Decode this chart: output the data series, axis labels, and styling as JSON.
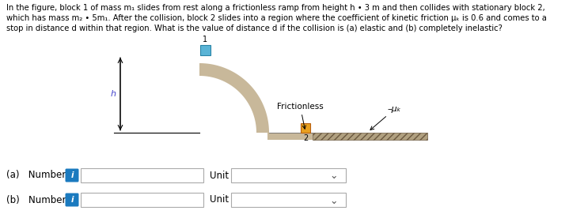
{
  "text_line1": "In the figure, block 1 of mass m₁ slides from rest along a frictionless ramp from height h • 3 m and then collides with stationary block 2,",
  "text_line2": "which has mass m₂ • 5m₁. After the collision, block 2 slides into a region where the coefficient of kinetic friction μₖ is 0.6 and comes to a",
  "text_line3": "stop in distance d within that region. What is the value of distance d if the collision is (a) elastic and (b) completely inelastic?",
  "label_a": "(a)   Number",
  "label_b": "(b)   Number",
  "label_unit": "Unit",
  "label_frictionless": "Frictionless",
  "label_mu": "–μₖ",
  "label_h": "h",
  "label_1": "1",
  "label_2": "2",
  "ramp_color": "#c8b89a",
  "block1_color": "#5ab4d6",
  "block2_color": "#e8a020",
  "text_color": "#000000",
  "label_color": "#4444cc",
  "bg_color": "#ffffff",
  "input_box_color": "#ffffff",
  "info_button_color": "#1a7abf",
  "arrow_color": "#000000",
  "ground_rough_color": "#b0a080",
  "ground_rough_edge": "#6a5840"
}
